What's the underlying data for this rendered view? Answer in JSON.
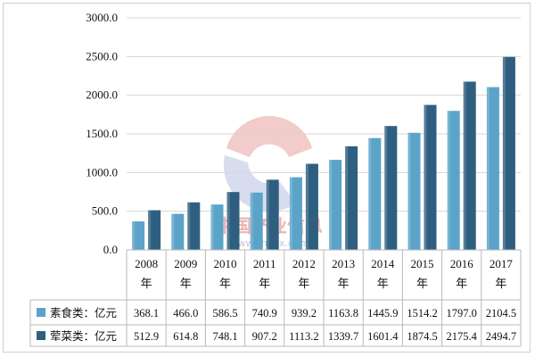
{
  "chart_data": {
    "type": "bar",
    "title": "",
    "xlabel": "",
    "ylabel": "",
    "ylim": [
      0,
      3000
    ],
    "yticks": [
      "0.0",
      "500.0",
      "1000.0",
      "1500.0",
      "2000.0",
      "2500.0",
      "3000.0"
    ],
    "ytick_values": [
      0,
      500,
      1000,
      1500,
      2000,
      2500,
      3000
    ],
    "grid": true,
    "legend_position": "table-below",
    "categories": [
      "2008年",
      "2009年",
      "2010年",
      "2011年",
      "2012年",
      "2013年",
      "2014年",
      "2015年",
      "2016年",
      "2017年"
    ],
    "category_years": [
      "2008",
      "2009",
      "2010",
      "2011",
      "2012",
      "2013",
      "2014",
      "2015",
      "2016",
      "2017"
    ],
    "category_suffix": "年",
    "series": [
      {
        "name": "素食类：亿元",
        "color": "#5ba3c9",
        "values": [
          368.1,
          466.0,
          586.5,
          740.9,
          939.2,
          1163.8,
          1445.9,
          1514.2,
          1797.0,
          2104.5
        ],
        "labels": [
          "368.1",
          "466.0",
          "586.5",
          "740.9",
          "939.2",
          "1163.8",
          "1445.9",
          "1514.2",
          "1797.0",
          "2104.5"
        ]
      },
      {
        "name": "荤菜类：亿元",
        "color": "#2f5f80",
        "values": [
          512.9,
          614.8,
          748.1,
          907.2,
          1113.2,
          1339.7,
          1601.4,
          1874.5,
          2175.4,
          2494.7
        ],
        "labels": [
          "512.9",
          "614.8",
          "748.1",
          "907.2",
          "1113.2",
          "1339.7",
          "1601.4",
          "1874.5",
          "2175.4",
          "2494.7"
        ]
      }
    ]
  },
  "watermark": {
    "text": "中国产业信息",
    "url": "www.chyxx.com",
    "colors": {
      "red": "#d96a6a",
      "blue": "#7b8fc9"
    }
  }
}
